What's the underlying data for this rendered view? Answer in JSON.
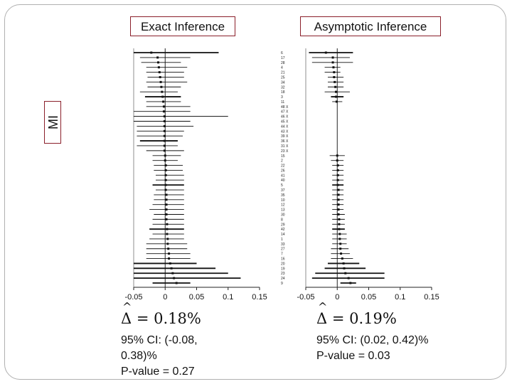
{
  "panels": {
    "exact_title": "Exact Inference",
    "asymptotic_title": "Asymptotic Inference",
    "y_axis_label": "MI"
  },
  "results": {
    "exact": {
      "delta_symbol": "Δ",
      "delta_text": "= 0.18%",
      "ci_line1": "95% CI: (-0.08,",
      "ci_line2": "0.38)%",
      "pvalue": "P-value  = 0.27"
    },
    "asymptotic": {
      "delta_symbol": "Δ",
      "delta_text": "= 0.19%",
      "ci_line1": "95% CI: (0.02, 0.42)%",
      "pvalue": "P-value = 0.03"
    }
  },
  "colors": {
    "title_border": "#8a1f2a",
    "ink": "#111111"
  },
  "chart_data": [
    {
      "type": "forest",
      "title": "Exact Inference",
      "xlabel": "",
      "ylabel": "MI",
      "xlim": [
        -0.05,
        0.15
      ],
      "xticks": [
        -0.05,
        0,
        0.05,
        0.1,
        0.15
      ],
      "xtick_labels": [
        "-0.05",
        "0",
        "0.05",
        "0.1",
        "0.15"
      ],
      "study_labels": [
        "6",
        "17",
        "28",
        "4",
        "21",
        "25",
        "34",
        "32",
        "18",
        "3",
        "11",
        "48 X",
        "47 X",
        "46 X",
        "45 X",
        "44 X",
        "43 X",
        "39 X",
        "36 X",
        "31 X",
        "23 X",
        "15",
        "2",
        "22",
        "26",
        "41",
        "40",
        "5",
        "37",
        "35",
        "10",
        "12",
        "13",
        "30",
        "8",
        "29",
        "42",
        "14",
        "1",
        "33",
        "27",
        "7",
        "16",
        "20",
        "19",
        "23",
        "24",
        "9"
      ],
      "estimates": [
        -0.022,
        -0.012,
        -0.011,
        -0.01,
        -0.009,
        -0.008,
        -0.007,
        -0.006,
        -0.005,
        -0.004,
        -0.003,
        -0.002,
        -0.002,
        -0.001,
        -0.001,
        -0.001,
        -0.001,
        -0.001,
        -0.001,
        -0.001,
        -0.001,
        0.0,
        0.0,
        0.001,
        0.001,
        0.001,
        0.001,
        0.001,
        0.001,
        0.002,
        0.002,
        0.002,
        0.002,
        0.002,
        0.002,
        0.003,
        0.003,
        0.003,
        0.004,
        0.004,
        0.005,
        0.006,
        0.006,
        0.008,
        0.01,
        0.012,
        0.014,
        0.018
      ],
      "ci_lower": [
        -0.05,
        -0.04,
        -0.038,
        -0.03,
        -0.03,
        -0.028,
        -0.03,
        -0.028,
        -0.04,
        -0.032,
        -0.03,
        -0.03,
        -0.05,
        -0.05,
        -0.05,
        -0.045,
        -0.045,
        -0.045,
        -0.04,
        -0.045,
        -0.03,
        -0.02,
        -0.02,
        -0.018,
        -0.018,
        -0.015,
        -0.015,
        -0.02,
        -0.015,
        -0.018,
        -0.018,
        -0.02,
        -0.025,
        -0.018,
        -0.02,
        -0.02,
        -0.025,
        -0.02,
        -0.025,
        -0.03,
        -0.03,
        -0.03,
        -0.03,
        -0.05,
        -0.05,
        -0.05,
        -0.05,
        -0.02
      ],
      "ci_upper": [
        0.085,
        0.04,
        0.025,
        0.035,
        0.03,
        0.03,
        0.035,
        0.025,
        0.02,
        0.025,
        0.025,
        0.04,
        0.04,
        0.1,
        0.04,
        0.045,
        0.03,
        0.028,
        0.02,
        0.02,
        0.03,
        0.025,
        0.02,
        0.028,
        0.028,
        0.03,
        0.03,
        0.03,
        0.03,
        0.03,
        0.03,
        0.03,
        0.03,
        0.03,
        0.03,
        0.03,
        0.03,
        0.03,
        0.03,
        0.035,
        0.035,
        0.04,
        0.04,
        0.05,
        0.08,
        0.1,
        0.12,
        0.04
      ],
      "reference_line": 0
    },
    {
      "type": "forest",
      "title": "Asymptotic Inference",
      "xlabel": "",
      "ylabel": "",
      "xlim": [
        -0.05,
        0.15
      ],
      "xticks": [
        -0.05,
        0,
        0.05,
        0.1,
        0.15
      ],
      "xtick_labels": [
        "-0.05",
        "0",
        "0.05",
        "0.1",
        "0.15"
      ],
      "estimates": [
        -0.018,
        -0.007,
        -0.007,
        -0.006,
        -0.005,
        -0.005,
        -0.004,
        -0.003,
        -0.002,
        -0.002,
        -0.001,
        null,
        null,
        null,
        null,
        null,
        null,
        null,
        null,
        null,
        null,
        0.0,
        0.0,
        0.001,
        0.001,
        0.001,
        0.001,
        0.001,
        0.002,
        0.002,
        0.002,
        0.002,
        0.002,
        0.002,
        0.003,
        0.003,
        0.003,
        0.004,
        0.004,
        0.005,
        0.005,
        0.006,
        0.008,
        0.01,
        0.011,
        0.013,
        0.018,
        0.021
      ],
      "ci_lower": [
        -0.045,
        -0.04,
        -0.04,
        -0.02,
        -0.02,
        -0.015,
        -0.015,
        -0.015,
        -0.02,
        -0.01,
        -0.008,
        null,
        null,
        null,
        null,
        null,
        null,
        null,
        null,
        null,
        null,
        -0.012,
        -0.01,
        -0.008,
        -0.008,
        -0.008,
        -0.008,
        -0.008,
        -0.008,
        -0.008,
        -0.008,
        -0.008,
        -0.008,
        -0.008,
        -0.008,
        -0.008,
        -0.008,
        -0.008,
        -0.008,
        -0.008,
        -0.01,
        -0.01,
        -0.01,
        -0.015,
        -0.02,
        -0.035,
        -0.04,
        0.005
      ],
      "ci_upper": [
        0.025,
        0.02,
        0.025,
        0.005,
        0.005,
        0.01,
        0.01,
        0.01,
        0.02,
        0.01,
        0.008,
        null,
        null,
        null,
        null,
        null,
        null,
        null,
        null,
        null,
        null,
        0.012,
        0.01,
        0.01,
        0.01,
        0.01,
        0.01,
        0.01,
        0.01,
        0.01,
        0.01,
        0.01,
        0.01,
        0.012,
        0.012,
        0.012,
        0.012,
        0.015,
        0.015,
        0.015,
        0.018,
        0.02,
        0.025,
        0.035,
        0.045,
        0.075,
        0.075,
        0.03
      ],
      "reference_line": 0
    }
  ]
}
